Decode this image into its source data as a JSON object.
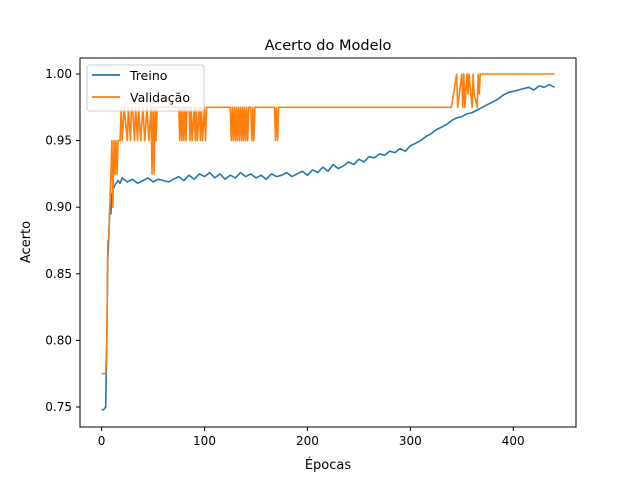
{
  "chart_data": {
    "type": "line",
    "title": "Acerto do Modelo",
    "xlabel": "Épocas",
    "ylabel": "Acerto",
    "xlim": [
      -21,
      461
    ],
    "ylim": [
      0.735,
      1.012
    ],
    "x_ticks": [
      0,
      100,
      200,
      300,
      400
    ],
    "y_ticks": [
      0.75,
      0.8,
      0.85,
      0.9,
      0.95,
      1.0
    ],
    "y_tick_labels": [
      "0.75",
      "0.80",
      "0.85",
      "0.90",
      "0.95",
      "1.00"
    ],
    "grid": false,
    "legend": {
      "placement": "top-left",
      "entries": [
        "Treino",
        "Validação"
      ]
    },
    "series": [
      {
        "name": "Treino",
        "color": "#1f77b4",
        "x": [
          0,
          2,
          4,
          5,
          6,
          7,
          8,
          9,
          10,
          12,
          14,
          16,
          18,
          20,
          25,
          30,
          35,
          40,
          45,
          50,
          55,
          60,
          65,
          70,
          75,
          80,
          85,
          90,
          95,
          100,
          105,
          110,
          115,
          120,
          125,
          130,
          135,
          140,
          145,
          150,
          155,
          160,
          165,
          170,
          175,
          180,
          185,
          190,
          195,
          200,
          205,
          210,
          215,
          220,
          225,
          230,
          235,
          240,
          245,
          250,
          255,
          260,
          265,
          270,
          275,
          280,
          285,
          290,
          295,
          300,
          305,
          310,
          315,
          320,
          325,
          330,
          335,
          340,
          345,
          350,
          355,
          360,
          365,
          370,
          375,
          380,
          385,
          390,
          395,
          400,
          405,
          410,
          415,
          420,
          425,
          430,
          435,
          440
        ],
        "values": [
          0.748,
          0.748,
          0.75,
          0.8,
          0.86,
          0.88,
          0.9,
          0.895,
          0.91,
          0.915,
          0.918,
          0.92,
          0.918,
          0.922,
          0.919,
          0.921,
          0.918,
          0.92,
          0.922,
          0.919,
          0.921,
          0.92,
          0.919,
          0.921,
          0.923,
          0.92,
          0.924,
          0.921,
          0.925,
          0.923,
          0.926,
          0.922,
          0.925,
          0.921,
          0.924,
          0.922,
          0.926,
          0.923,
          0.925,
          0.922,
          0.924,
          0.921,
          0.925,
          0.923,
          0.924,
          0.926,
          0.923,
          0.925,
          0.927,
          0.924,
          0.928,
          0.926,
          0.93,
          0.927,
          0.932,
          0.929,
          0.931,
          0.934,
          0.932,
          0.936,
          0.934,
          0.938,
          0.937,
          0.94,
          0.939,
          0.942,
          0.941,
          0.944,
          0.942,
          0.946,
          0.948,
          0.95,
          0.953,
          0.955,
          0.958,
          0.96,
          0.962,
          0.965,
          0.967,
          0.968,
          0.97,
          0.971,
          0.973,
          0.975,
          0.977,
          0.979,
          0.981,
          0.984,
          0.986,
          0.987,
          0.988,
          0.989,
          0.99,
          0.988,
          0.991,
          0.99,
          0.992,
          0.99
        ]
      },
      {
        "name": "Validação",
        "color": "#ff7f0e",
        "x": [
          0,
          4,
          5,
          6,
          7,
          8,
          9,
          10,
          11,
          12,
          13,
          14,
          15,
          16,
          17,
          18,
          19,
          20,
          22,
          25,
          26,
          28,
          29,
          30,
          32,
          33,
          35,
          36,
          38,
          40,
          42,
          44,
          46,
          48,
          49,
          50,
          51,
          52,
          53,
          54,
          55,
          60,
          70,
          75,
          76,
          77,
          78,
          79,
          80,
          81,
          82,
          83,
          85,
          86,
          87,
          88,
          90,
          91,
          92,
          93,
          95,
          96,
          97,
          98,
          100,
          101,
          102,
          103,
          105,
          110,
          120,
          125,
          126,
          127,
          128,
          129,
          130,
          131,
          132,
          133,
          134,
          135,
          136,
          137,
          138,
          139,
          140,
          141,
          142,
          143,
          145,
          146,
          147,
          148,
          149,
          150,
          155,
          165,
          168,
          169,
          170,
          171,
          172,
          180,
          200,
          250,
          300,
          340,
          345,
          346,
          350,
          351,
          352,
          353,
          355,
          356,
          357,
          360,
          361,
          362,
          365,
          366,
          367,
          368,
          370,
          380,
          400,
          420,
          440
        ],
        "values": [
          0.775,
          0.775,
          0.8,
          0.875,
          0.875,
          0.9,
          0.925,
          0.95,
          0.9,
          0.95,
          0.925,
          0.95,
          0.925,
          0.95,
          0.95,
          0.95,
          0.975,
          0.95,
          0.975,
          0.95,
          0.975,
          0.95,
          0.975,
          0.975,
          0.95,
          0.975,
          0.95,
          0.975,
          0.95,
          0.975,
          0.95,
          0.975,
          0.95,
          0.975,
          0.925,
          0.975,
          0.925,
          0.975,
          0.95,
          0.975,
          0.975,
          0.975,
          0.975,
          0.975,
          0.95,
          0.975,
          0.95,
          0.975,
          0.95,
          0.975,
          0.95,
          0.975,
          0.975,
          0.95,
          0.975,
          0.95,
          0.975,
          0.95,
          0.975,
          0.95,
          0.975,
          0.95,
          0.975,
          0.95,
          0.975,
          0.95,
          0.975,
          0.975,
          0.975,
          0.975,
          0.975,
          0.975,
          0.95,
          0.975,
          0.95,
          0.975,
          0.95,
          0.975,
          0.95,
          0.975,
          0.95,
          0.975,
          0.95,
          0.975,
          0.95,
          0.975,
          0.95,
          0.975,
          0.95,
          0.975,
          0.975,
          0.95,
          0.975,
          0.95,
          0.975,
          0.975,
          0.975,
          0.975,
          0.975,
          0.95,
          0.975,
          0.95,
          0.975,
          0.975,
          0.975,
          0.975,
          0.975,
          0.975,
          1.0,
          0.975,
          1.0,
          0.975,
          1.0,
          0.975,
          1.0,
          0.985,
          1.0,
          0.975,
          1.0,
          0.985,
          0.975,
          1.0,
          0.985,
          1.0,
          1.0,
          1.0,
          1.0,
          1.0,
          1.0
        ]
      }
    ]
  }
}
